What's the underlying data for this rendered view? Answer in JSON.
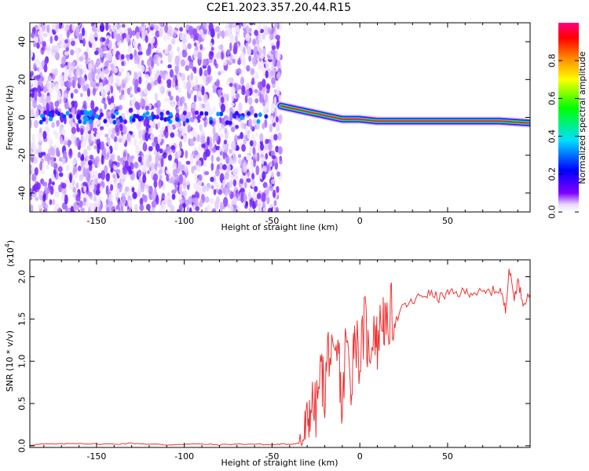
{
  "title": "C2E1.2023.357.20.44.R15",
  "chart_data": [
    {
      "type": "heatmap",
      "name": "spectrogram",
      "xlabel": "Height of straight line (km)",
      "ylabel": "Frequency (Hz)",
      "xlim": [
        -188,
        97
      ],
      "ylim": [
        -50,
        50
      ],
      "xticks": [
        -150,
        -100,
        -50,
        0,
        50
      ],
      "yticks": [
        -40,
        -20,
        0,
        20,
        40
      ],
      "colorbar": {
        "label": "Normalized spectral amplitude",
        "range": [
          0.0,
          1.0
        ],
        "ticks": [
          0.0,
          0.2,
          0.4,
          0.6,
          0.8
        ],
        "tick_labels": [
          "0.0",
          "0.2",
          "0.4",
          "0.6",
          "0.8"
        ],
        "colormap": [
          "#ffffff",
          "#8000ff",
          "#0000ff",
          "#00ffff",
          "#00ff00",
          "#ffff00",
          "#ff8000",
          "#ff0000",
          "#ff0080"
        ]
      },
      "description_features": {
        "noise_region_x": [
          -188,
          -45
        ],
        "signal_start_x": -45,
        "signal_track": {
          "x": [
            -45,
            -40,
            -35,
            -30,
            -25,
            -20,
            -15,
            -10,
            -5,
            0,
            10,
            20,
            40,
            60,
            80,
            97
          ],
          "freq": [
            6,
            5,
            4,
            3,
            2,
            1,
            0,
            -1,
            -1,
            -1,
            -2,
            -2,
            -2,
            -2,
            -2,
            -3
          ]
        }
      }
    },
    {
      "type": "line",
      "name": "snr",
      "xlabel": "Height of straight line (km)",
      "ylabel": "SNR (10 * v/v)",
      "y_multiplier_label": "(x10",
      "y_multiplier_exp": "4",
      "y_multiplier_close": ")",
      "xlim": [
        -188,
        97
      ],
      "ylim": [
        -0.02,
        2.2
      ],
      "xticks": [
        -150,
        -100,
        -50,
        0,
        50
      ],
      "yticks": [
        0.0,
        0.5,
        1.0,
        1.5,
        2.0
      ],
      "ytick_labels": [
        "0.0",
        "0.5",
        "1.0",
        "1.5",
        "2.0"
      ],
      "series": [
        {
          "color": "#ee3333",
          "x": [
            -188,
            -180,
            -170,
            -160,
            -150,
            -140,
            -130,
            -120,
            -110,
            -100,
            -90,
            -80,
            -70,
            -60,
            -50,
            -45,
            -40,
            -35,
            -32,
            -30,
            -28,
            -25,
            -22,
            -20,
            -18,
            -15,
            -12,
            -10,
            -8,
            -5,
            -3,
            0,
            3,
            5,
            8,
            10,
            13,
            15,
            18,
            20,
            25,
            30,
            35,
            40,
            45,
            50,
            55,
            60,
            65,
            70,
            75,
            80,
            83,
            85,
            88,
            90,
            93,
            97
          ],
          "values": [
            0.01,
            0.02,
            0.02,
            0.03,
            0.02,
            0.02,
            0.03,
            0.02,
            0.01,
            0.02,
            0.02,
            0.01,
            0.02,
            0.02,
            0.01,
            0.02,
            0.02,
            0.03,
            0.1,
            0.25,
            0.5,
            0.4,
            0.9,
            0.6,
            1.2,
            0.85,
            1.1,
            0.3,
            1.3,
            0.7,
            1.4,
            1.0,
            1.5,
            1.05,
            1.45,
            1.2,
            1.6,
            1.3,
            1.6,
            1.45,
            1.65,
            1.7,
            1.78,
            1.8,
            1.75,
            1.8,
            1.8,
            1.82,
            1.82,
            1.8,
            1.83,
            1.85,
            1.6,
            2.1,
            1.75,
            1.95,
            1.7,
            1.8
          ]
        }
      ]
    }
  ]
}
